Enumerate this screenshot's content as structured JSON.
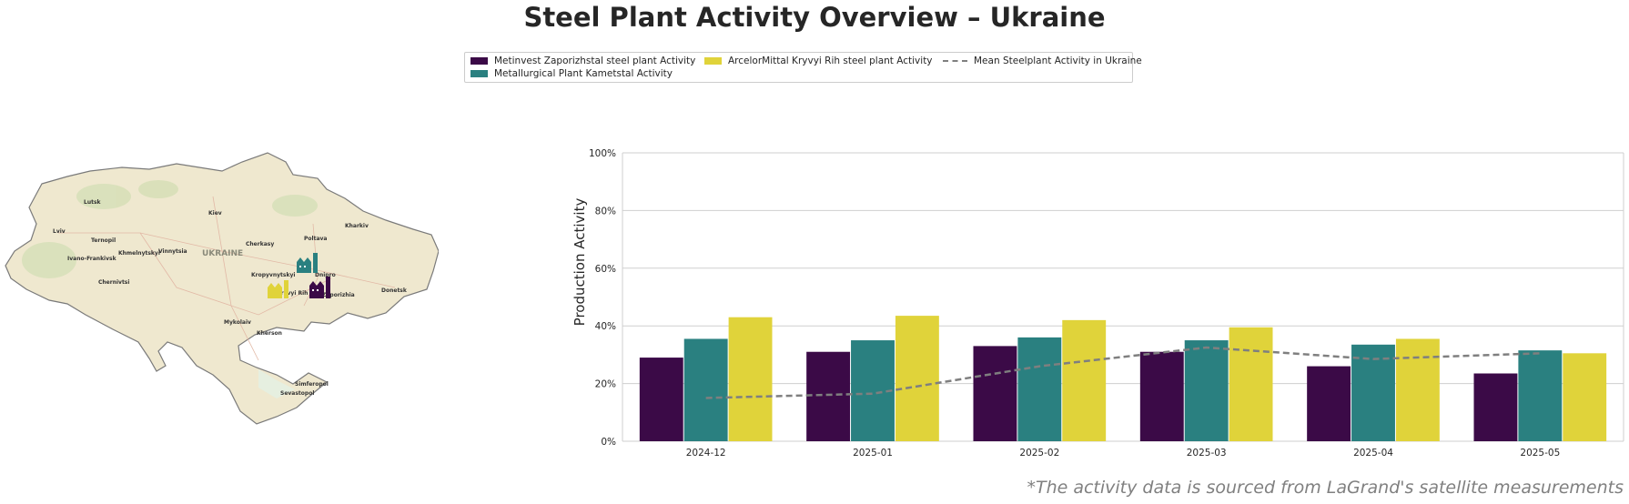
{
  "title": "Steel Plant Activity Overview – Ukraine",
  "footnote": "*The activity data is sourced from LaGrand's satellite measurements",
  "map": {
    "country_label": "UKRAINE",
    "cities": [
      "Lutsk",
      "Kiev",
      "Kharkiv",
      "Lviv",
      "Ternopil",
      "Khmelnytskyi",
      "Vinnytsia",
      "Cherkasy",
      "Poltava",
      "Ivano-Frankivsk",
      "Chernivtsi",
      "Kropyvnytskyi",
      "Dnipro",
      "Kryvyi Rih",
      "Zaporizhia",
      "Donetsk",
      "Mykolaiv",
      "Kherson",
      "Simferopol",
      "Sevastopol"
    ]
  },
  "colors": {
    "metinvest": "#3b0a47",
    "kametstal": "#2a8080",
    "arcelormittal": "#e0d33a",
    "mean": "#7f7f7f"
  },
  "chart_data": {
    "type": "bar",
    "categories": [
      "2024-12",
      "2025-01",
      "2025-02",
      "2025-03",
      "2025-04",
      "2025-05"
    ],
    "series": [
      {
        "name": "Metinvest Zaporizhstal steel plant Activity",
        "values": [
          29,
          31,
          33,
          31,
          26,
          23.5
        ]
      },
      {
        "name": "Metallurgical Plant Kametstal Activity",
        "values": [
          35.5,
          35,
          36,
          35,
          33.5,
          31.5
        ]
      },
      {
        "name": "ArcelorMittal Kryvyi Rih steel plant Activity",
        "values": [
          43,
          43.5,
          42,
          39.5,
          35.5,
          30.5
        ]
      }
    ],
    "line_series": {
      "name": "Mean Steelplant Activity in Ukraine",
      "values": [
        15,
        16.5,
        26,
        32.5,
        28.5,
        30.5
      ]
    },
    "ylabel": "Production Activity",
    "xlabel": "",
    "ylim": [
      0,
      100
    ],
    "yticks": [
      "0%",
      "20%",
      "40%",
      "60%",
      "80%",
      "100%"
    ],
    "grid": true,
    "legend_position": "top-center"
  }
}
